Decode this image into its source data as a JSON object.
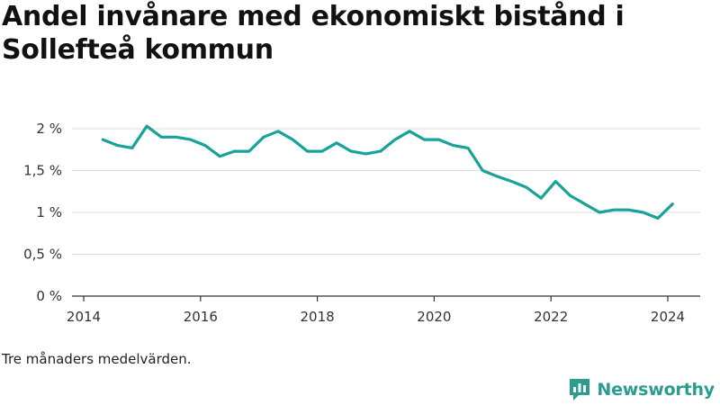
{
  "title": "Andel invånare med ekonomiskt bistånd i Sollefteå kommun",
  "note": "Tre månaders medelvärden.",
  "brand": {
    "name": "Newsworthy",
    "icon": "newsworthy-logo-icon",
    "color": "#2a9d8f"
  },
  "chart_data": {
    "type": "line",
    "title": "Andel invånare med ekonomiskt bistånd i Sollefteå kommun",
    "xlabel": "",
    "ylabel": "",
    "xlim": [
      2014,
      2024.6
    ],
    "ylim": [
      0,
      2.1
    ],
    "x_ticks": [
      2014,
      2016,
      2018,
      2020,
      2022,
      2024
    ],
    "x_tick_labels": [
      "2014",
      "2016",
      "2018",
      "2020",
      "2022",
      "2024"
    ],
    "y_ticks": [
      0,
      0.5,
      1,
      1.5,
      2
    ],
    "y_tick_labels": [
      "0 %",
      "0,5 %",
      "1 %",
      "1,5 %",
      "2 %"
    ],
    "grid": true,
    "line_color": "#17a398",
    "series": [
      {
        "x": [
          2014.33,
          2014.58,
          2014.83,
          2015.08,
          2015.33,
          2015.58,
          2015.83,
          2016.08,
          2016.33,
          2016.58,
          2016.83,
          2017.08,
          2017.33,
          2017.58,
          2017.83,
          2018.08,
          2018.33,
          2018.58,
          2018.83,
          2019.08,
          2019.33,
          2019.58,
          2019.83,
          2020.08,
          2020.33,
          2020.58,
          2020.83,
          2021.08,
          2021.33,
          2021.58,
          2021.83,
          2022.08,
          2022.33,
          2022.58,
          2022.83,
          2023.08,
          2023.33,
          2023.58,
          2023.83,
          2024.08
        ],
        "y": [
          1.87,
          1.8,
          1.77,
          2.03,
          1.9,
          1.9,
          1.87,
          1.8,
          1.67,
          1.73,
          1.73,
          1.9,
          1.97,
          1.87,
          1.73,
          1.73,
          1.83,
          1.73,
          1.7,
          1.73,
          1.87,
          1.97,
          1.87,
          1.87,
          1.8,
          1.77,
          1.5,
          1.43,
          1.37,
          1.3,
          1.17,
          1.37,
          1.2,
          1.1,
          1.0,
          1.03,
          1.03,
          1.0,
          0.93,
          1.1
        ]
      }
    ]
  }
}
